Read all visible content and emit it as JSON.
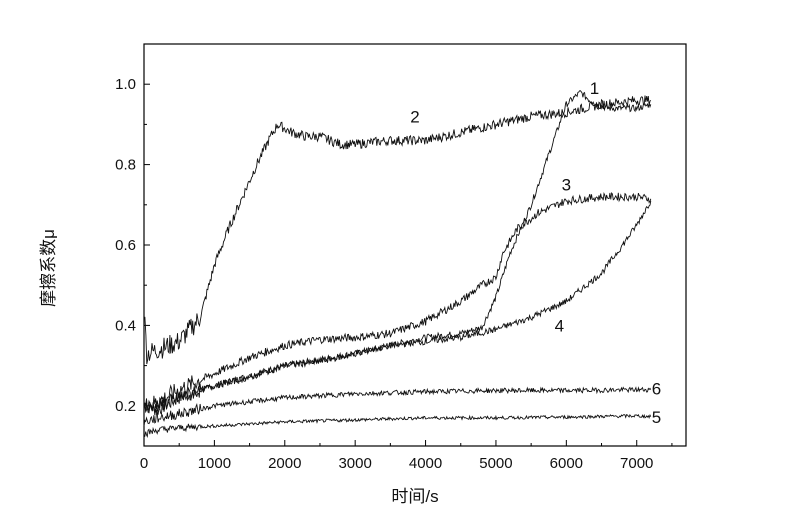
{
  "chart_data": {
    "type": "line",
    "xlabel": "时间/s",
    "ylabel": "摩擦系数μ",
    "xlim": [
      0,
      7700
    ],
    "ylim": [
      0.1,
      1.1
    ],
    "x_ticks": [
      0,
      1000,
      2000,
      3000,
      4000,
      5000,
      6000,
      7000
    ],
    "y_ticks": [
      0.2,
      0.4,
      0.6,
      0.8,
      1.0
    ],
    "y_tick_labels": [
      "0.2",
      "0.4",
      "0.6",
      "0.8",
      "1.0"
    ],
    "grid": false,
    "legend": "none",
    "series": [
      {
        "label": "1",
        "label_at": [
          6400,
          0.99
        ],
        "points": [
          [
            0,
            0.2
          ],
          [
            200,
            0.19
          ],
          [
            500,
            0.22
          ],
          [
            1000,
            0.25
          ],
          [
            1500,
            0.275
          ],
          [
            2000,
            0.3
          ],
          [
            2500,
            0.315
          ],
          [
            3000,
            0.33
          ],
          [
            3500,
            0.35
          ],
          [
            4000,
            0.37
          ],
          [
            4500,
            0.38
          ],
          [
            4800,
            0.395
          ],
          [
            5000,
            0.47
          ],
          [
            5200,
            0.58
          ],
          [
            5500,
            0.7
          ],
          [
            5800,
            0.85
          ],
          [
            6000,
            0.95
          ],
          [
            6200,
            0.98
          ],
          [
            6400,
            0.95
          ],
          [
            6600,
            0.94
          ],
          [
            6800,
            0.94
          ],
          [
            7000,
            0.94
          ],
          [
            7200,
            0.95
          ]
        ]
      },
      {
        "label": "2",
        "label_at": [
          3850,
          0.92
        ],
        "points": [
          [
            0,
            0.44
          ],
          [
            40,
            0.33
          ],
          [
            200,
            0.34
          ],
          [
            500,
            0.36
          ],
          [
            800,
            0.42
          ],
          [
            1000,
            0.55
          ],
          [
            1200,
            0.64
          ],
          [
            1400,
            0.72
          ],
          [
            1600,
            0.8
          ],
          [
            1800,
            0.87
          ],
          [
            1900,
            0.9
          ],
          [
            2100,
            0.88
          ],
          [
            2300,
            0.87
          ],
          [
            2500,
            0.87
          ],
          [
            2800,
            0.85
          ],
          [
            3000,
            0.85
          ],
          [
            3200,
            0.855
          ],
          [
            3500,
            0.86
          ],
          [
            4000,
            0.86
          ],
          [
            4500,
            0.88
          ],
          [
            5000,
            0.9
          ],
          [
            5500,
            0.92
          ],
          [
            6000,
            0.93
          ],
          [
            6500,
            0.95
          ],
          [
            7000,
            0.96
          ],
          [
            7200,
            0.96
          ]
        ]
      },
      {
        "label": "3",
        "label_at": [
          6000,
          0.75
        ],
        "points": [
          [
            0,
            0.2
          ],
          [
            200,
            0.21
          ],
          [
            500,
            0.24
          ],
          [
            1000,
            0.28
          ],
          [
            1500,
            0.32
          ],
          [
            2000,
            0.35
          ],
          [
            2500,
            0.365
          ],
          [
            3000,
            0.37
          ],
          [
            3500,
            0.38
          ],
          [
            4000,
            0.41
          ],
          [
            4500,
            0.46
          ],
          [
            4800,
            0.5
          ],
          [
            5000,
            0.52
          ],
          [
            5100,
            0.58
          ],
          [
            5300,
            0.64
          ],
          [
            5600,
            0.68
          ],
          [
            6000,
            0.71
          ],
          [
            6500,
            0.72
          ],
          [
            7000,
            0.72
          ],
          [
            7200,
            0.715
          ]
        ]
      },
      {
        "label": "4",
        "label_at": [
          5900,
          0.4
        ],
        "points": [
          [
            0,
            0.2
          ],
          [
            200,
            0.2
          ],
          [
            500,
            0.22
          ],
          [
            1000,
            0.25
          ],
          [
            1500,
            0.27
          ],
          [
            2000,
            0.3
          ],
          [
            2500,
            0.31
          ],
          [
            3000,
            0.33
          ],
          [
            3500,
            0.35
          ],
          [
            4000,
            0.36
          ],
          [
            4500,
            0.37
          ],
          [
            5000,
            0.39
          ],
          [
            5500,
            0.42
          ],
          [
            6000,
            0.46
          ],
          [
            6500,
            0.53
          ],
          [
            6800,
            0.6
          ],
          [
            7000,
            0.65
          ],
          [
            7200,
            0.71
          ]
        ]
      },
      {
        "label": "5",
        "label_at": [
          7280,
          0.172
        ],
        "points": [
          [
            0,
            0.13
          ],
          [
            200,
            0.14
          ],
          [
            500,
            0.145
          ],
          [
            1000,
            0.15
          ],
          [
            2000,
            0.16
          ],
          [
            3000,
            0.165
          ],
          [
            4000,
            0.17
          ],
          [
            5000,
            0.17
          ],
          [
            6000,
            0.172
          ],
          [
            7000,
            0.175
          ],
          [
            7200,
            0.173
          ]
        ]
      },
      {
        "label": "6",
        "label_at": [
          7280,
          0.243
        ],
        "points": [
          [
            0,
            0.16
          ],
          [
            200,
            0.17
          ],
          [
            500,
            0.18
          ],
          [
            1000,
            0.2
          ],
          [
            1500,
            0.21
          ],
          [
            2000,
            0.22
          ],
          [
            2500,
            0.225
          ],
          [
            3000,
            0.23
          ],
          [
            4000,
            0.235
          ],
          [
            5000,
            0.238
          ],
          [
            6000,
            0.238
          ],
          [
            7000,
            0.24
          ],
          [
            7200,
            0.24
          ]
        ]
      }
    ]
  }
}
